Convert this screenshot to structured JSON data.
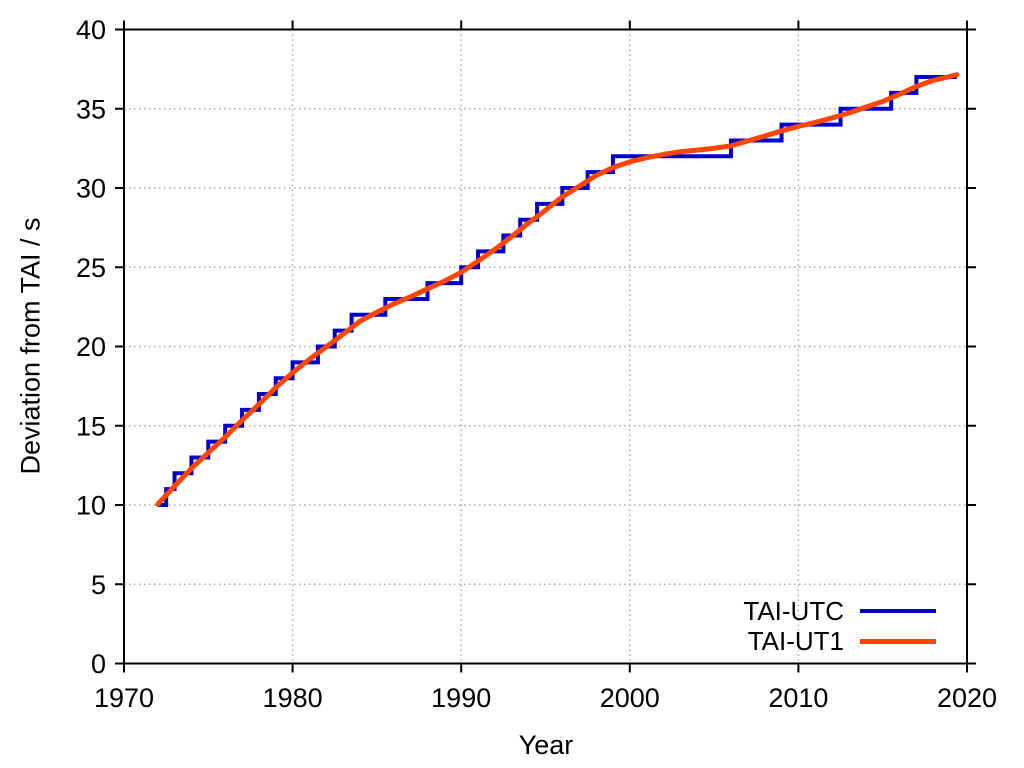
{
  "chart_data": {
    "type": "line",
    "title": "",
    "xlabel": "Year",
    "ylabel": "Deviation from TAI / s",
    "xlim": [
      1970,
      2020
    ],
    "ylim": [
      0,
      40
    ],
    "xticks": [
      1970,
      1980,
      1990,
      2000,
      2010,
      2020
    ],
    "yticks": [
      0,
      5,
      10,
      15,
      20,
      25,
      30,
      35,
      40
    ],
    "grid": "dotted",
    "legend_position": "inside-bottom-right",
    "series": [
      {
        "name": "TAI-UTC",
        "color": "#0000CD",
        "style": "steps-post",
        "line_width": 4,
        "x": [
          1972.0,
          1972.5,
          1973.0,
          1974.0,
          1975.0,
          1976.0,
          1977.0,
          1978.0,
          1979.0,
          1980.0,
          1981.5,
          1982.5,
          1983.5,
          1985.5,
          1988.0,
          1990.0,
          1991.0,
          1992.5,
          1993.5,
          1994.5,
          1996.0,
          1997.5,
          1999.0,
          2006.0,
          2009.0,
          2012.5,
          2015.5,
          2017.0,
          2019.4
        ],
        "y": [
          10,
          11,
          12,
          13,
          14,
          15,
          16,
          17,
          18,
          19,
          20,
          21,
          22,
          23,
          24,
          25,
          26,
          27,
          28,
          29,
          30,
          31,
          32,
          33,
          34,
          35,
          36,
          37,
          37
        ]
      },
      {
        "name": "TAI-UT1",
        "color": "#FF4500",
        "style": "line",
        "line_width": 5,
        "x": [
          1972,
          1973,
          1974,
          1975,
          1976,
          1977,
          1978,
          1979,
          1980,
          1981,
          1982,
          1983,
          1984,
          1985,
          1986,
          1987,
          1988,
          1989,
          1990,
          1991,
          1992,
          1993,
          1994,
          1995,
          1996,
          1997,
          1998,
          1999,
          2000,
          2001,
          2002,
          2003,
          2004,
          2005,
          2006,
          2007,
          2008,
          2009,
          2010,
          2011,
          2012,
          2013,
          2014,
          2015,
          2016,
          2017,
          2018,
          2019,
          2019.4
        ],
        "y": [
          10.05,
          11.19,
          12.31,
          13.3,
          14.28,
          15.34,
          16.35,
          17.41,
          18.35,
          19.2,
          19.98,
          20.78,
          21.6,
          22.16,
          22.69,
          23.14,
          23.64,
          24.12,
          24.68,
          25.39,
          26.13,
          26.94,
          27.8,
          28.6,
          29.45,
          30.11,
          30.79,
          31.29,
          31.65,
          31.91,
          32.12,
          32.29,
          32.39,
          32.51,
          32.66,
          32.97,
          33.28,
          33.6,
          33.89,
          34.14,
          34.42,
          34.73,
          35.1,
          35.46,
          35.92,
          36.41,
          36.79,
          37.04,
          37.15
        ]
      }
    ]
  },
  "colors": {
    "background": "#FFFFFF",
    "axis": "#000000",
    "grid": "#A8A8A8",
    "text": "#000000"
  }
}
